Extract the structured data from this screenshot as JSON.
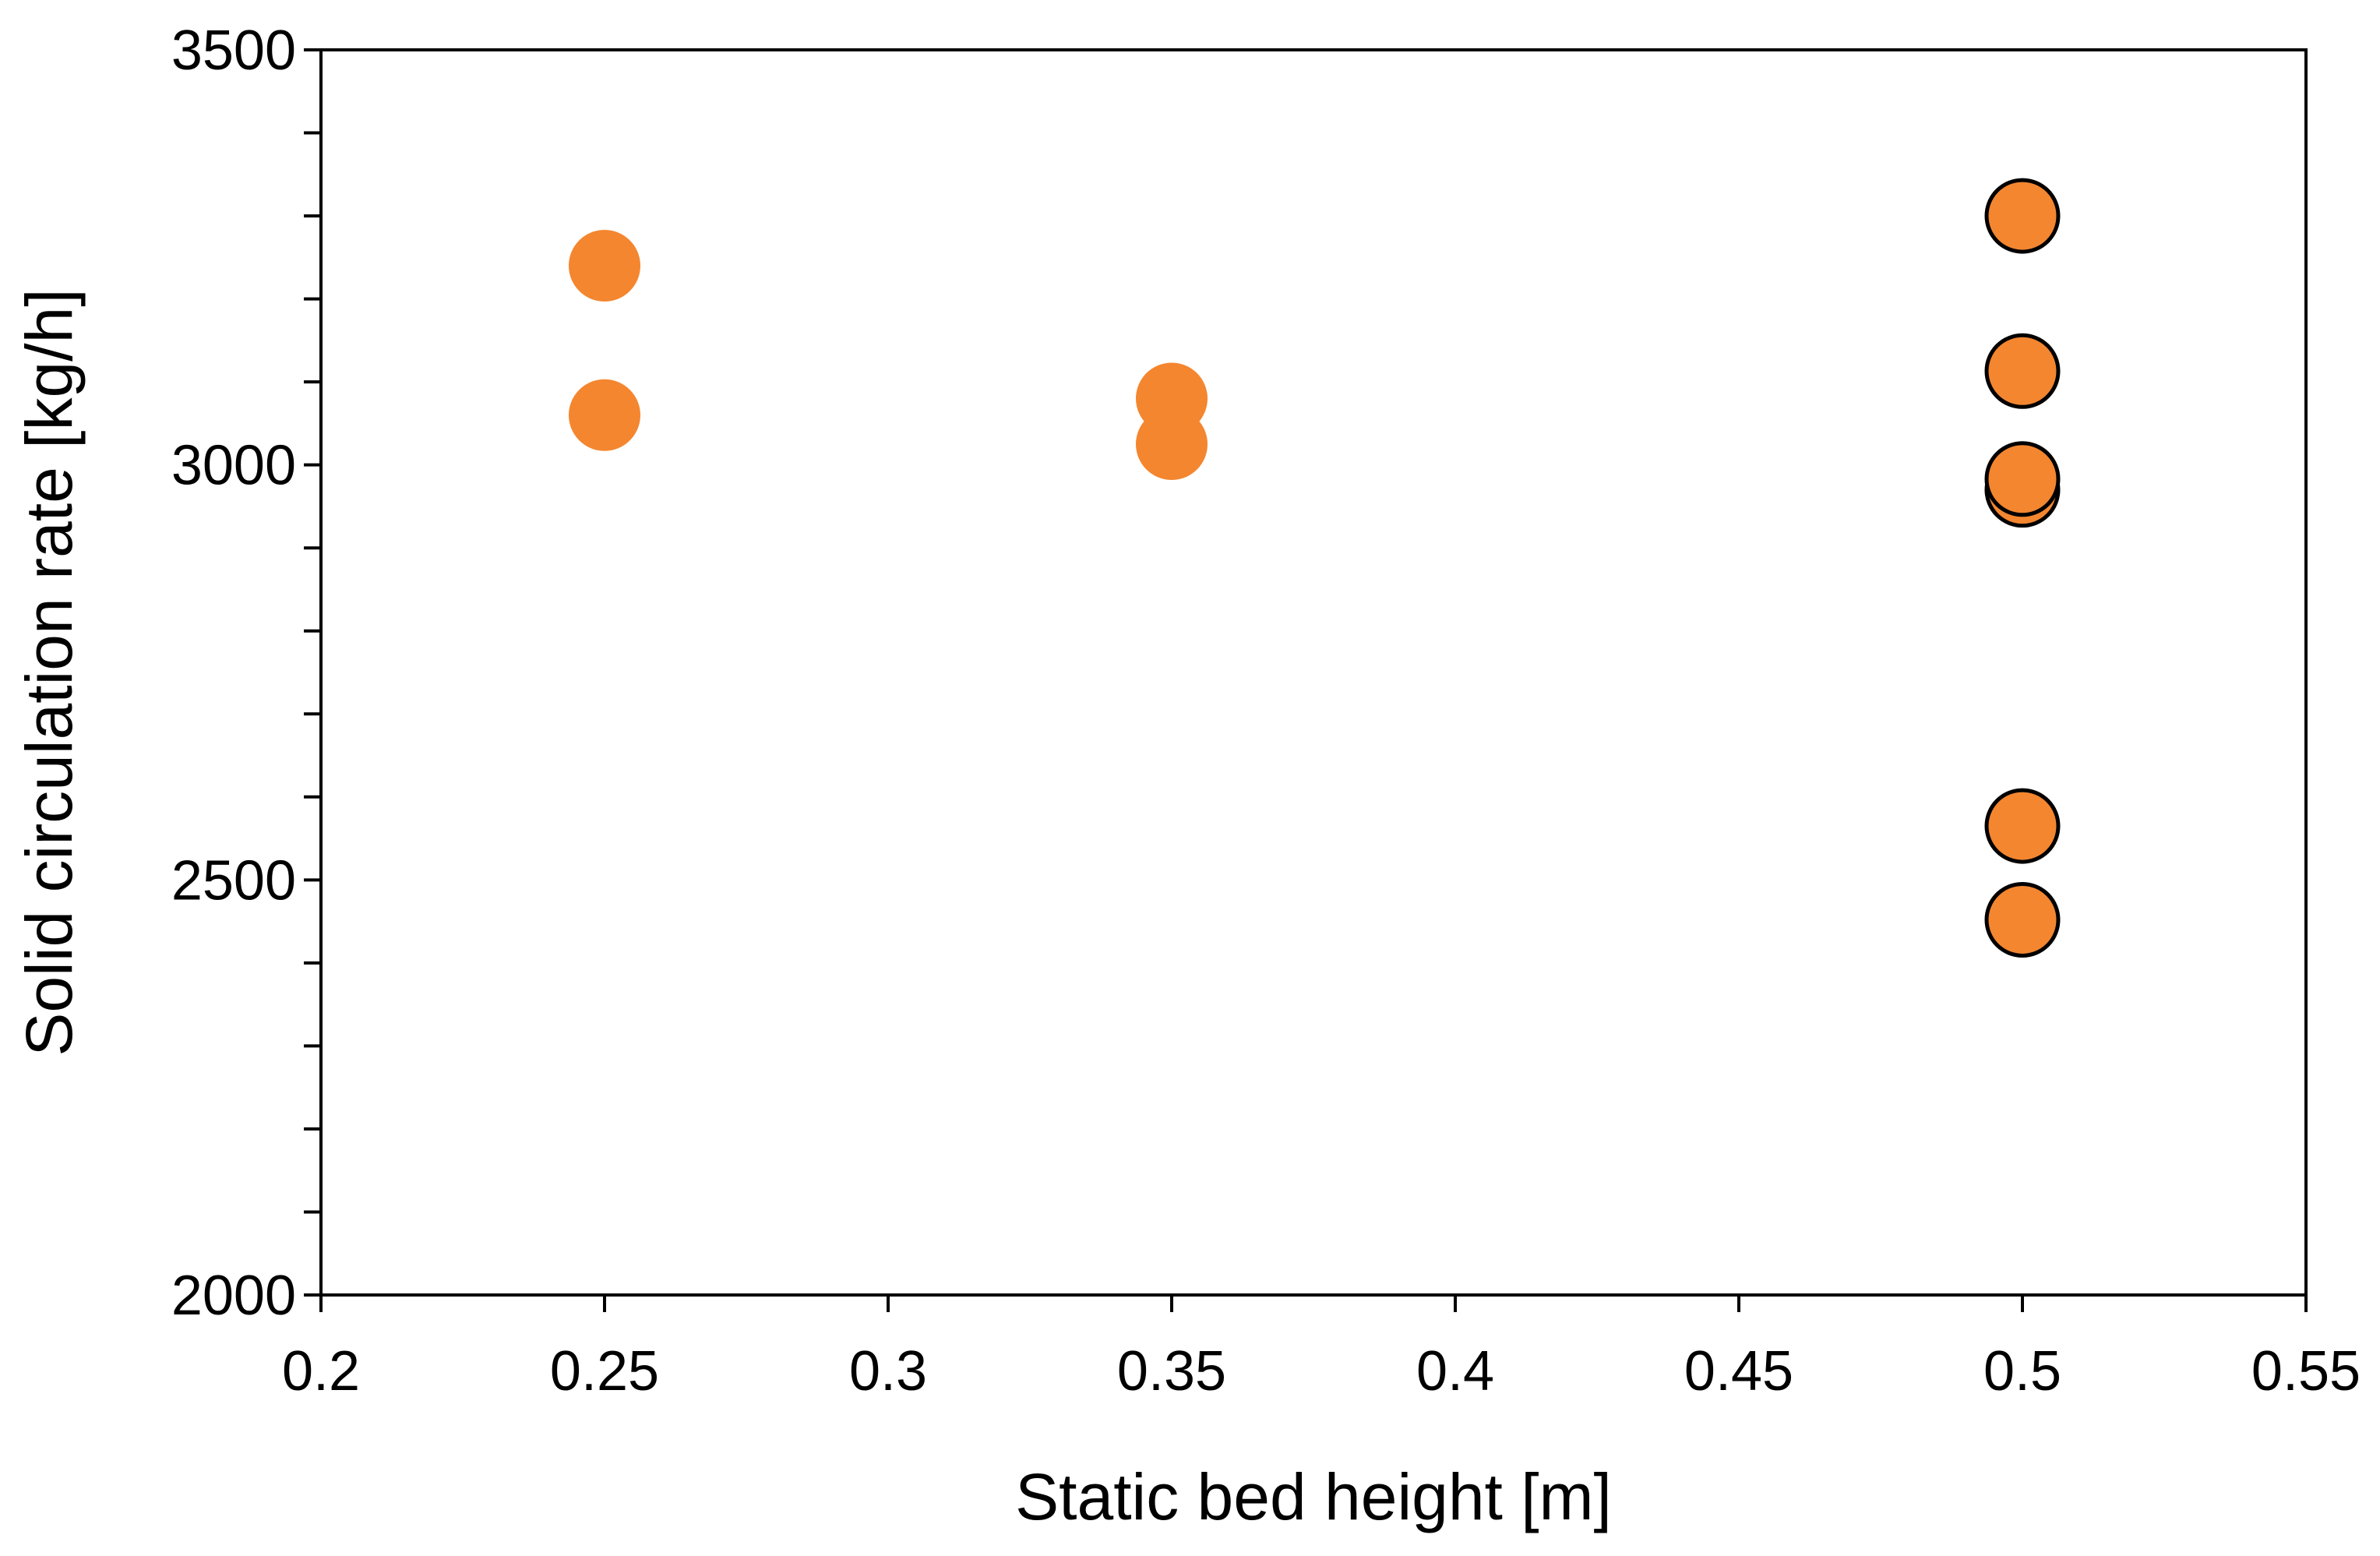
{
  "chart_data": {
    "type": "scatter",
    "xlabel": "Static bed height [m]",
    "ylabel": "Solid circulation rate [kg/h]",
    "xlim": [
      0.2,
      0.55
    ],
    "ylim": [
      2000,
      3500
    ],
    "x_ticks": [
      0.2,
      0.25,
      0.3,
      0.35,
      0.4,
      0.45,
      0.5,
      0.55
    ],
    "x_tick_labels": [
      "0.2",
      "0.25",
      "0.3",
      "0.35",
      "0.4",
      "0.45",
      "0.5",
      "0.55"
    ],
    "y_ticks": [
      2000,
      2500,
      3000,
      3500
    ],
    "y_tick_labels": [
      "2000",
      "2500",
      "3000",
      "3500"
    ],
    "y_minor_step": 100,
    "grid": false,
    "legend": "none",
    "series": [
      {
        "color": "#f4862f",
        "outlined": false,
        "points": [
          {
            "x": 0.25,
            "y": 3240
          },
          {
            "x": 0.25,
            "y": 3060
          },
          {
            "x": 0.35,
            "y": 3080
          },
          {
            "x": 0.35,
            "y": 3025
          }
        ]
      },
      {
        "color": "#f4862f",
        "outlined": true,
        "outline_color": "#000000",
        "points": [
          {
            "x": 0.5,
            "y": 3300
          },
          {
            "x": 0.5,
            "y": 3113
          },
          {
            "x": 0.5,
            "y": 2970
          },
          {
            "x": 0.5,
            "y": 2983
          },
          {
            "x": 0.5,
            "y": 2565
          },
          {
            "x": 0.5,
            "y": 2452
          }
        ]
      }
    ]
  }
}
